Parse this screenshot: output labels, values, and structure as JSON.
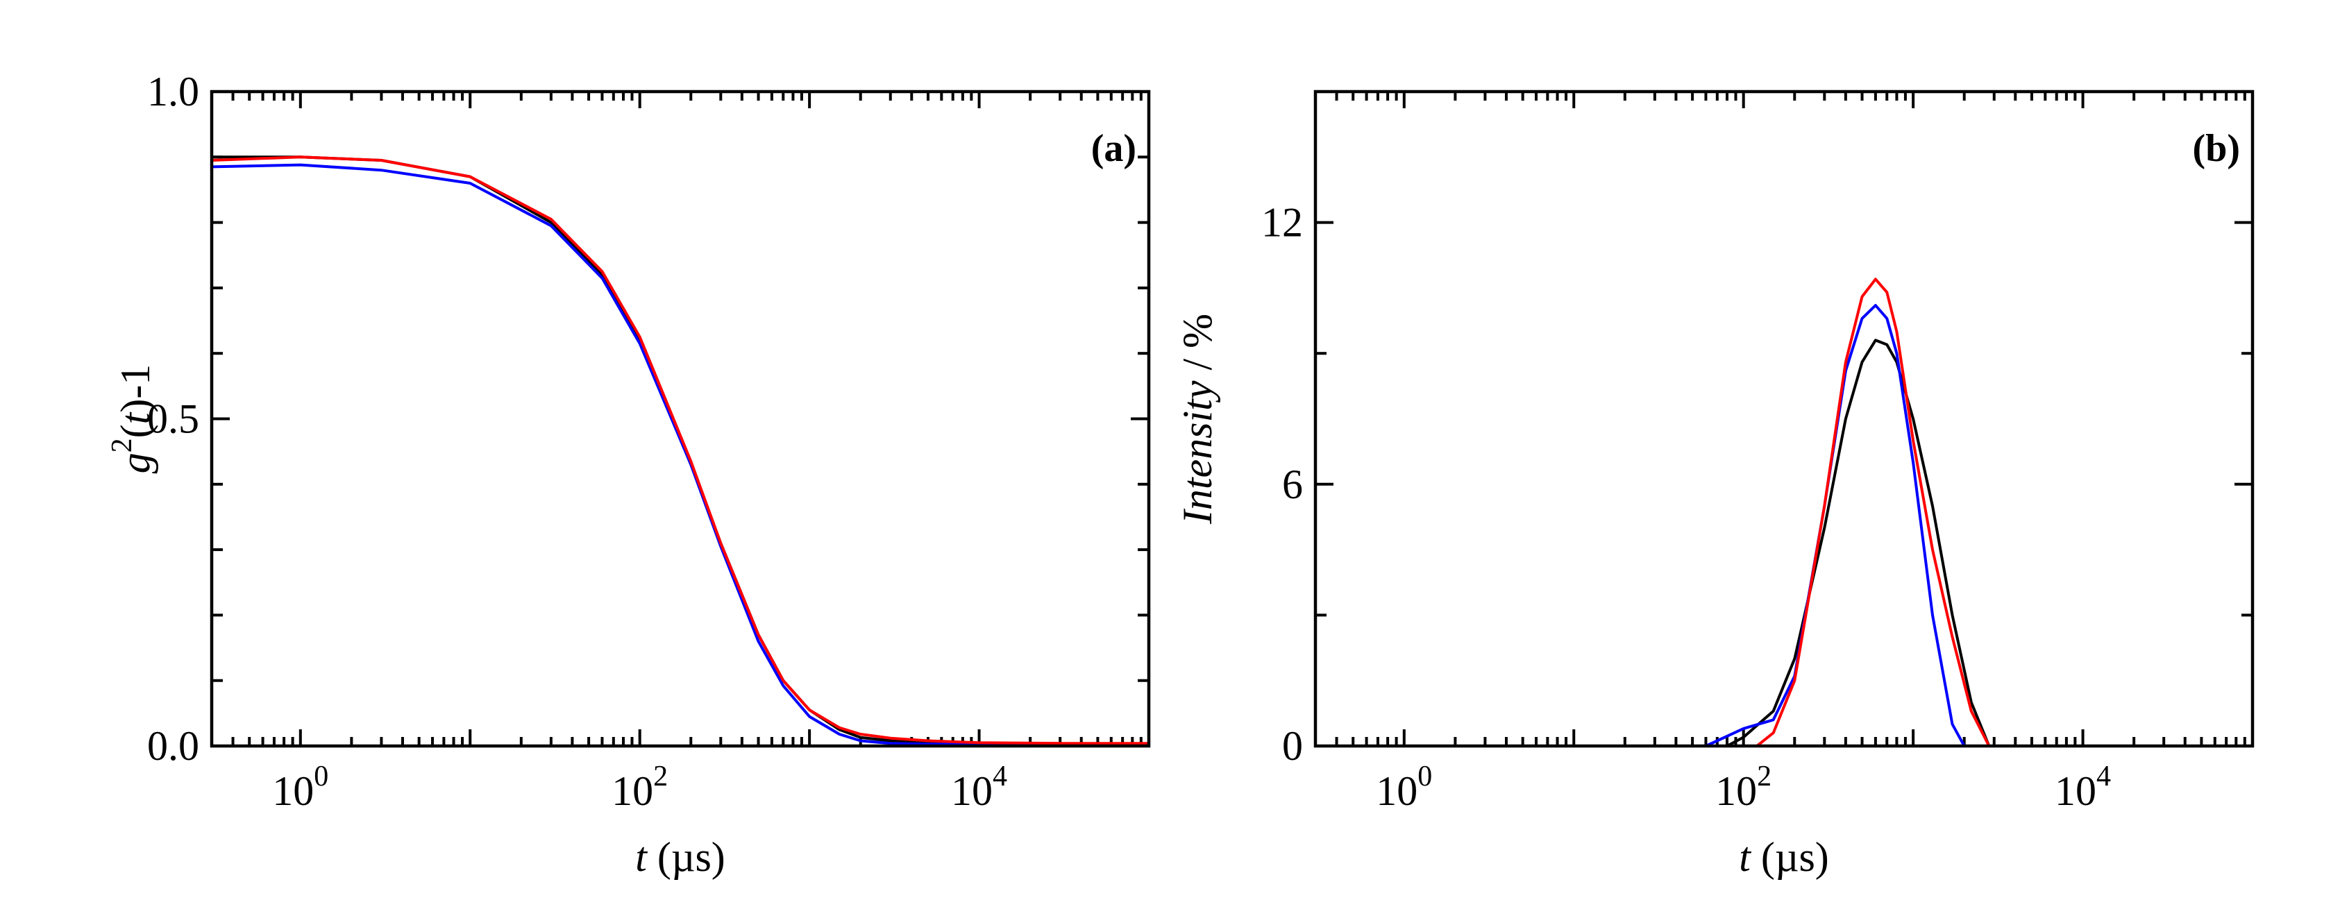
{
  "chart_data": [
    {
      "type": "line",
      "panel_label": "(a)",
      "xlabel": {
        "italic": "t",
        "rest": " (µs)"
      },
      "ylabel": {
        "base": "g",
        "sup": "2",
        "open": "(",
        "italic": "t",
        "close": ")-1"
      },
      "xscale": "log",
      "xlim": [
        0.3,
        100000
      ],
      "ylim": [
        0,
        1.0
      ],
      "xticks": [
        {
          "base": "10",
          "exp": "0",
          "value": 1
        },
        {
          "base": "10",
          "exp": "2",
          "value": 100
        },
        {
          "base": "10",
          "exp": "4",
          "value": 10000
        }
      ],
      "yticks": [
        {
          "label": "0.0",
          "value": 0
        },
        {
          "label": "0.5",
          "value": 0.5
        },
        {
          "label": "1.0",
          "value": 1.0
        }
      ],
      "series": [
        {
          "name": "black",
          "color": "#000000",
          "x": [
            0.3,
            1,
            3,
            10,
            30,
            60,
            100,
            200,
            300,
            500,
            700,
            1000,
            1500,
            2000,
            3000,
            5000,
            10000,
            30000,
            100000
          ],
          "y": [
            0.9,
            0.9,
            0.895,
            0.87,
            0.8,
            0.72,
            0.62,
            0.43,
            0.31,
            0.17,
            0.1,
            0.055,
            0.025,
            0.013,
            0.008,
            0.005,
            0.003,
            0.002,
            0.002
          ]
        },
        {
          "name": "blue",
          "color": "#0000ff",
          "x": [
            0.3,
            1,
            3,
            10,
            30,
            60,
            100,
            200,
            300,
            500,
            700,
            1000,
            1500,
            2000,
            3000,
            5000,
            10000,
            30000,
            100000
          ],
          "y": [
            0.885,
            0.888,
            0.88,
            0.86,
            0.795,
            0.715,
            0.615,
            0.43,
            0.305,
            0.16,
            0.092,
            0.045,
            0.018,
            0.008,
            0.004,
            0.003,
            0.003,
            0.002,
            0.002
          ]
        },
        {
          "name": "red",
          "color": "#ff0000",
          "x": [
            0.3,
            1,
            3,
            10,
            30,
            60,
            100,
            200,
            300,
            500,
            700,
            1000,
            1500,
            2000,
            3000,
            5000,
            10000,
            30000,
            100000
          ],
          "y": [
            0.895,
            0.9,
            0.895,
            0.87,
            0.805,
            0.725,
            0.625,
            0.435,
            0.31,
            0.17,
            0.1,
            0.055,
            0.028,
            0.018,
            0.012,
            0.008,
            0.005,
            0.004,
            0.004
          ]
        }
      ]
    },
    {
      "type": "line",
      "panel_label": "(b)",
      "xlabel": {
        "italic": "t",
        "rest": "  (µs)"
      },
      "ylabel": {
        "italic": "Intensity",
        "rest": " / %"
      },
      "xscale": "log",
      "xlim": [
        0.3,
        100000
      ],
      "ylim": [
        0,
        15
      ],
      "xticks": [
        {
          "base": "10",
          "exp": "0",
          "value": 1
        },
        {
          "base": "10",
          "exp": "2",
          "value": 100
        },
        {
          "base": "10",
          "exp": "4",
          "value": 10000
        }
      ],
      "yticks": [
        {
          "label": "0",
          "value": 0
        },
        {
          "label": "6",
          "value": 6
        },
        {
          "label": "12",
          "value": 12
        }
      ],
      "series": [
        {
          "name": "black",
          "color": "#000000",
          "x": [
            80,
            100,
            150,
            200,
            300,
            400,
            500,
            600,
            700,
            800,
            1000,
            1300,
            1700,
            2200,
            2800
          ],
          "y": [
            0,
            0.2,
            0.8,
            2.0,
            5.0,
            7.5,
            8.8,
            9.3,
            9.2,
            8.8,
            7.5,
            5.5,
            3.0,
            1.0,
            0
          ]
        },
        {
          "name": "blue",
          "color": "#0000ff",
          "x": [
            60,
            100,
            150,
            200,
            300,
            400,
            500,
            600,
            700,
            800,
            1000,
            1300,
            1700,
            2000
          ],
          "y": [
            0,
            0.4,
            0.6,
            1.6,
            5.5,
            8.6,
            9.8,
            10.1,
            9.8,
            9.0,
            6.5,
            3.0,
            0.5,
            0
          ]
        },
        {
          "name": "red",
          "color": "#ff0000",
          "x": [
            120,
            150,
            200,
            300,
            400,
            500,
            600,
            700,
            800,
            1000,
            1300,
            1700,
            2200,
            2800
          ],
          "y": [
            0,
            0.3,
            1.5,
            5.5,
            8.8,
            10.3,
            10.7,
            10.4,
            9.5,
            7.0,
            4.5,
            2.5,
            0.8,
            0
          ]
        }
      ]
    }
  ]
}
